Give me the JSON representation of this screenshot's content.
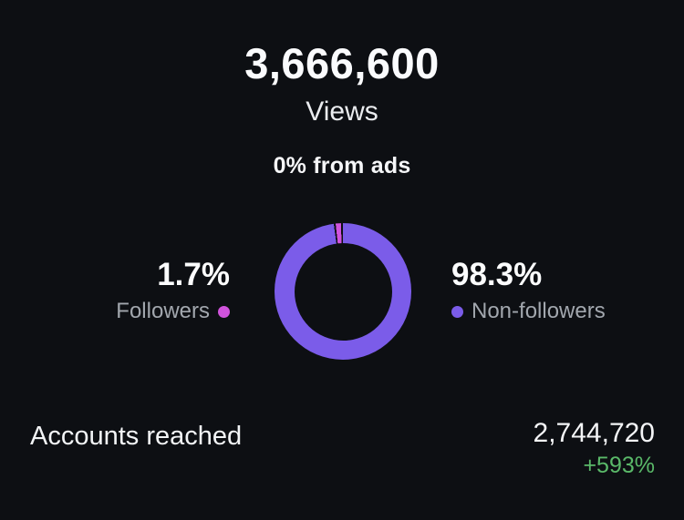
{
  "colors": {
    "background": "#0d0f13",
    "followers": "#d153dd",
    "non_followers": "#7b5ce9",
    "delta_positive": "#5ab969"
  },
  "header": {
    "count": "3,666,600",
    "metric": "Views",
    "ads_note": "0% from ads"
  },
  "chart_data": {
    "type": "pie",
    "donut": true,
    "title": "Views",
    "slices": [
      {
        "label": "Followers",
        "value_pct": 1.7,
        "percent_label": "1.7%",
        "color": "#d153dd"
      },
      {
        "label": "Non-followers",
        "value_pct": 98.3,
        "percent_label": "98.3%",
        "color": "#7b5ce9"
      }
    ],
    "legend_position": "sides",
    "segment_gap_deg": 1.6
  },
  "footer": {
    "label": "Accounts reached",
    "value": "2,744,720",
    "delta": "+593%"
  }
}
